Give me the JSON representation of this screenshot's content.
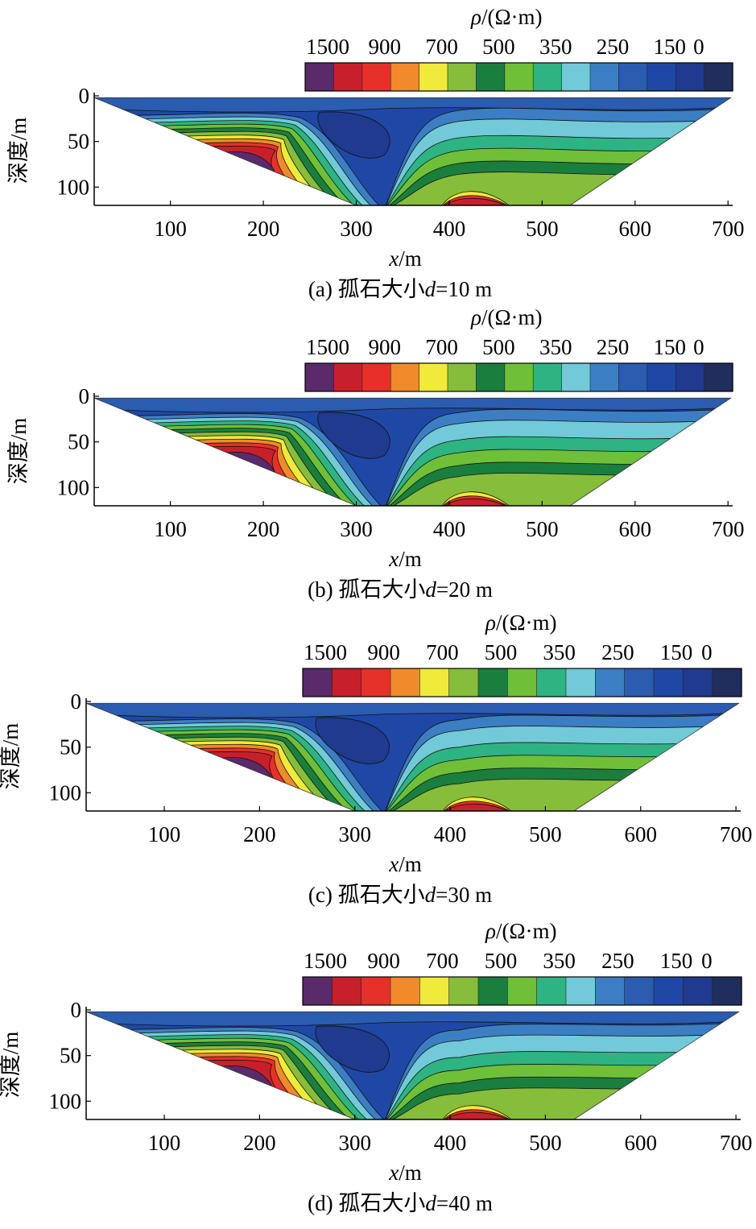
{
  "colorbar": {
    "title_symbol": "ρ",
    "title_unit": "/(Ω·m)",
    "tick_labels": [
      "1500",
      "900",
      "700",
      "500",
      "350",
      "250",
      "150",
      "0"
    ],
    "colors": [
      "#5a2a6b",
      "#c8202a",
      "#e8302a",
      "#f08a2a",
      "#f0ea3a",
      "#86bd3a",
      "#1a7f3e",
      "#6fbf38",
      "#2db482",
      "#72cad8",
      "#3c7ec4",
      "#2a5cb0",
      "#1f48a6",
      "#1f3a8e",
      "#202e5e"
    ]
  },
  "chart_data": [
    {
      "type": "heatmap",
      "caption_prefix": "(a) 孤石大小",
      "caption_var": "d",
      "caption_suffix": "=10 m",
      "xlabel_var": "x",
      "xlabel_unit": "/m",
      "ylabel": "深度/m",
      "xlim": [
        18,
        705
      ],
      "ylim": [
        0,
        120
      ],
      "xticks": [
        100,
        200,
        300,
        400,
        500,
        600,
        700
      ],
      "yticks": [
        0,
        50,
        100
      ],
      "boulder_diameter_m": 10
    },
    {
      "type": "heatmap",
      "caption_prefix": "(b) 孤石大小",
      "caption_var": "d",
      "caption_suffix": "=20 m",
      "xlabel_var": "x",
      "xlabel_unit": "/m",
      "ylabel": "深度/m",
      "xlim": [
        18,
        705
      ],
      "ylim": [
        0,
        120
      ],
      "xticks": [
        100,
        200,
        300,
        400,
        500,
        600,
        700
      ],
      "yticks": [
        0,
        50,
        100
      ],
      "boulder_diameter_m": 20
    },
    {
      "type": "heatmap",
      "caption_prefix": "(c) 孤石大小",
      "caption_var": "d",
      "caption_suffix": "=30 m",
      "xlabel_var": "x",
      "xlabel_unit": "/m",
      "ylabel": "深度/m",
      "xlim": [
        18,
        705
      ],
      "ylim": [
        0,
        120
      ],
      "xticks": [
        100,
        200,
        300,
        400,
        500,
        600,
        700
      ],
      "yticks": [
        0,
        50,
        100
      ],
      "boulder_diameter_m": 30
    },
    {
      "type": "heatmap",
      "caption_prefix": "(d) 孤石大小",
      "caption_var": "d",
      "caption_suffix": "=40 m",
      "xlabel_var": "x",
      "xlabel_unit": "/m",
      "ylabel": "深度/m",
      "xlim": [
        18,
        705
      ],
      "ylim": [
        0,
        120
      ],
      "xticks": [
        100,
        200,
        300,
        400,
        500,
        600,
        700
      ],
      "yticks": [
        0,
        50,
        100
      ],
      "boulder_diameter_m": 40
    }
  ]
}
